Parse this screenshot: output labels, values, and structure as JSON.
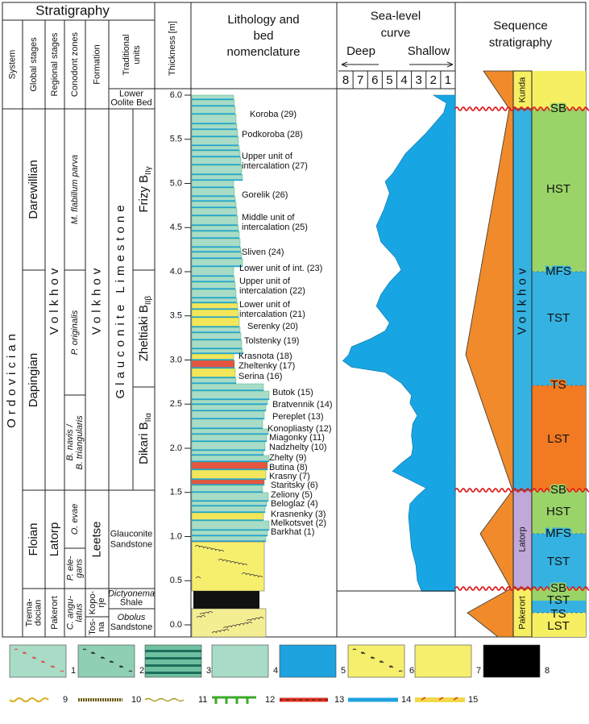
{
  "stratigraphy": {
    "title": "Stratigraphy",
    "headers": [
      "System",
      "Global stages",
      "Regional stages",
      "Conodont zones",
      "Formation",
      [
        "Traditional",
        "units"
      ]
    ],
    "system": "Ordovician",
    "global_stages": [
      "Darewillian",
      "Dapingian",
      "Floian",
      [
        "Trema-",
        "docian"
      ]
    ],
    "regional_stages": [
      "Volkhov",
      "Latorp",
      "Pakerort"
    ],
    "conodont_zones": [
      "M. flabillum parva",
      "P. originalis",
      [
        "B. navis /",
        "B. triangularis"
      ],
      "O. evae",
      [
        "P. ele-",
        "gans"
      ],
      [
        "C. angu-",
        "latus"
      ]
    ],
    "formations": [
      "Volkhov",
      "Leetse",
      [
        "Kopo-",
        "rje"
      ],
      [
        "Tos-",
        "na"
      ]
    ],
    "traditional_units": [
      [
        "Lower",
        "Oolite Bed"
      ],
      "Glauconite Limestone",
      {
        "text": "Frizy B",
        "sub": "IIγ"
      },
      {
        "text": "Zheltiaki B",
        "sub": "IIβ"
      },
      {
        "text": "Dikari B",
        "sub": "IIα"
      },
      [
        "Glauconite",
        "Sandstone"
      ],
      [
        "Dictyonema",
        "Shale"
      ],
      [
        "Obolus",
        "Sandstone"
      ]
    ]
  },
  "thickness": {
    "label": "Thickness [m]",
    "ticks": [
      {
        "value": 0,
        "label": "0.0"
      },
      0.5,
      {
        "value": 1,
        "label": "1.0"
      },
      1.5,
      {
        "value": 2,
        "label": "2.0"
      },
      2.5,
      {
        "value": 3,
        "label": "3.0"
      },
      3.5,
      {
        "value": 4,
        "label": "4.0"
      },
      4.5,
      {
        "value": 5,
        "label": "5.0"
      },
      5.5,
      {
        "value": 6,
        "label": "6.0"
      }
    ]
  },
  "lithology": {
    "title": [
      "Lithology and",
      "bed",
      "nomenclature"
    ],
    "beds": [
      "Koroba (29)",
      "Podkoroba (28)",
      [
        "Upper unit of",
        "intercalation (27)"
      ],
      "Gorelik (26)",
      [
        "Middle unit of",
        "intercalation (25)"
      ],
      "Sliven (24)",
      "Lower unit of int. (23)",
      [
        "Upper unit of",
        "intercalation (22)"
      ],
      [
        "Lower unit of",
        "intercalation (21)"
      ],
      "Serenky (20)",
      "Tolstenky (19)",
      "Krasnota (18)",
      "Zheltenky (17)",
      "Serina (16)",
      "Butok (15)",
      "Bratvennik (14)",
      "Pereplet (13)",
      "Konopliasty (12)",
      "Miagonky (11)",
      "Nadzhelty (10)",
      "Zhelty (9)",
      "Butina (8)",
      "Krasny (7)",
      "Staritsky (6)",
      "Zeliony (5)",
      "Beloglaz (4)",
      "Krasnenky (3)",
      "Melkotsvet (2)",
      "Barkhat (1)"
    ]
  },
  "sea_level": {
    "title": [
      "Sea-level",
      "curve"
    ],
    "deep": "Deep",
    "shallow": "Shallow",
    "scale": [
      8,
      7,
      6,
      5,
      4,
      3,
      2,
      1
    ],
    "curve": {
      "thickness": [
        6.0,
        5.91,
        5.8,
        5.57,
        5.34,
        5.11,
        5.02,
        4.89,
        4.7,
        4.52,
        4.34,
        4.16,
        4.02,
        3.88,
        3.74,
        3.61,
        3.42,
        3.33,
        3.24,
        3.15,
        3.06,
        2.99,
        2.92,
        2.86,
        2.74,
        2.6,
        2.51,
        2.37,
        2.28,
        2.15,
        2.01,
        1.92,
        1.83,
        1.74,
        1.64,
        1.55,
        1.46,
        1.37,
        1.23,
        1.05,
        0.87,
        0.68,
        0.5,
        0.38
      ],
      "level": [
        2.0,
        1.1,
        1.3,
        2.5,
        3.9,
        4.8,
        5.3,
        5.0,
        5.4,
        5.9,
        5.6,
        4.6,
        4.2,
        5.0,
        5.6,
        5.9,
        5.0,
        5.3,
        6.3,
        7.6,
        7.8,
        8.2,
        7.6,
        5.3,
        4.2,
        3.5,
        3.6,
        3.1,
        3.4,
        3.5,
        3.4,
        3.5,
        4.2,
        4.8,
        3.6,
        2.5,
        3.1,
        3.6,
        3.7,
        3.6,
        3.5,
        3.2,
        3.1,
        2.8
      ]
    }
  },
  "sequence": {
    "title": [
      "Sequence",
      "stratigraphy"
    ],
    "sequences": [
      "Kunda",
      "Volkhov",
      "Latorp",
      "Pakerort"
    ],
    "surfaces_and_tracts": [
      "SB",
      "HST",
      "MFS",
      "TST",
      "TS",
      "LST",
      "SB",
      "HST",
      "MFS",
      "TST",
      "SB",
      "TST",
      "TS",
      "LST"
    ]
  },
  "legend": {
    "items": [
      1,
      2,
      3,
      4,
      5,
      6,
      7,
      8,
      9,
      10,
      11,
      12,
      13,
      14,
      15
    ]
  }
}
